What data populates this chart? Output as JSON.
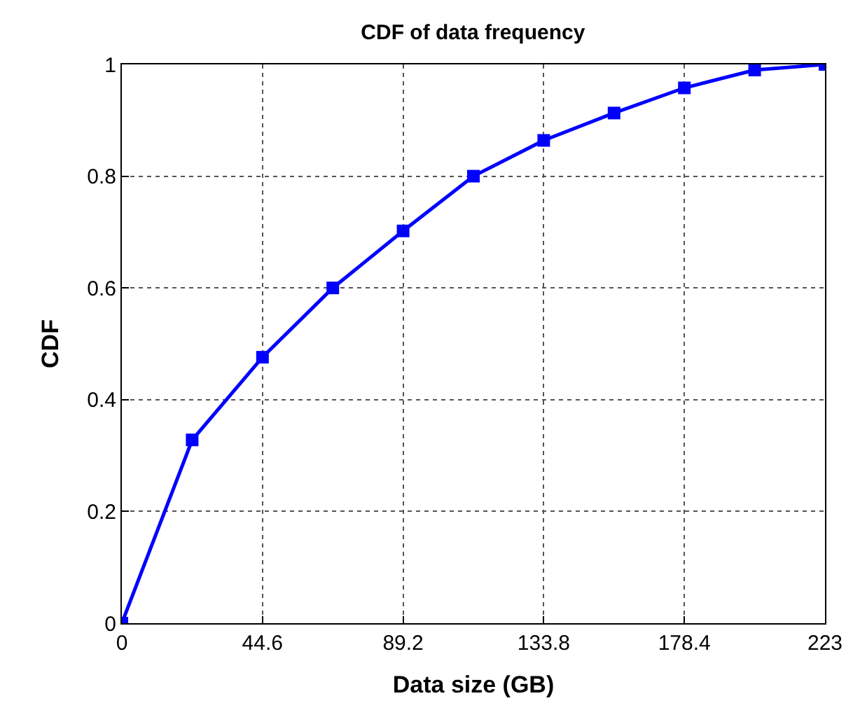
{
  "chart_data": {
    "type": "line",
    "title": "CDF of data frequency",
    "xlabel": "Data size (GB)",
    "ylabel": "CDF",
    "x": [
      0,
      22.3,
      44.6,
      66.9,
      89.2,
      111.5,
      133.8,
      156.1,
      178.4,
      200.7,
      223
    ],
    "series": [
      {
        "color": "#0000ff",
        "values": [
          0,
          0.328,
          0.476,
          0.6,
          0.702,
          0.8,
          0.864,
          0.913,
          0.958,
          0.99,
          1
        ]
      }
    ],
    "xlim": [
      0,
      223
    ],
    "ylim": [
      0,
      1
    ],
    "xticks": [
      0,
      44.6,
      89.2,
      133.8,
      178.4,
      223
    ],
    "yticks": [
      0,
      0.2,
      0.4,
      0.6,
      0.8,
      1
    ],
    "grid": true,
    "marker": "square",
    "line_style": "solid"
  }
}
